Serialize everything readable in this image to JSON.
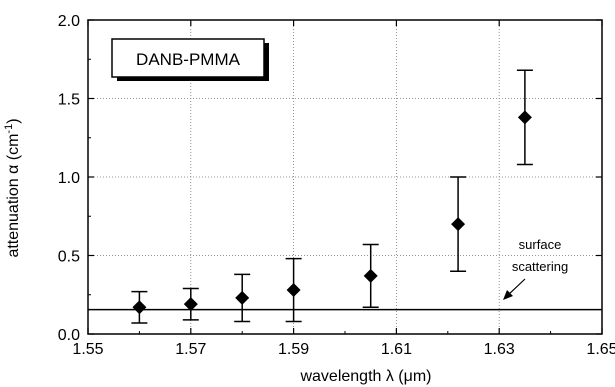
{
  "chart_data": {
    "type": "scatter",
    "legend_box": "DANB-PMMA",
    "xlabel": "wavelength λ (μm)",
    "ylabel": "attenuation α (cm",
    "ylabel_sup": "-1",
    "ylabel_close": ")",
    "xlim": [
      1.55,
      1.65
    ],
    "ylim": [
      0.0,
      2.0
    ],
    "x_ticks": [
      1.55,
      1.57,
      1.59,
      1.61,
      1.63,
      1.65
    ],
    "x_tick_labels": [
      "1.55",
      "1.57",
      "1.59",
      "1.61",
      "1.63",
      "1.65"
    ],
    "y_ticks": [
      0.0,
      0.5,
      1.0,
      1.5,
      2.0
    ],
    "y_tick_labels": [
      "0.0",
      "0.5",
      "1.0",
      "1.5",
      "2.0"
    ],
    "grid": true,
    "points": [
      {
        "x": 1.56,
        "y": 0.17,
        "err_low": 0.07,
        "err_high": 0.27
      },
      {
        "x": 1.57,
        "y": 0.19,
        "err_low": 0.09,
        "err_high": 0.29
      },
      {
        "x": 1.58,
        "y": 0.23,
        "err_low": 0.08,
        "err_high": 0.38
      },
      {
        "x": 1.59,
        "y": 0.28,
        "err_low": 0.08,
        "err_high": 0.48
      },
      {
        "x": 1.605,
        "y": 0.37,
        "err_low": 0.17,
        "err_high": 0.57
      },
      {
        "x": 1.622,
        "y": 0.7,
        "err_low": 0.4,
        "err_high": 1.0
      },
      {
        "x": 1.635,
        "y": 1.38,
        "err_low": 1.08,
        "err_high": 1.68
      }
    ],
    "reference_line": {
      "y": 0.155
    },
    "annotation": {
      "line1": "surface",
      "line2": "scattering"
    }
  }
}
